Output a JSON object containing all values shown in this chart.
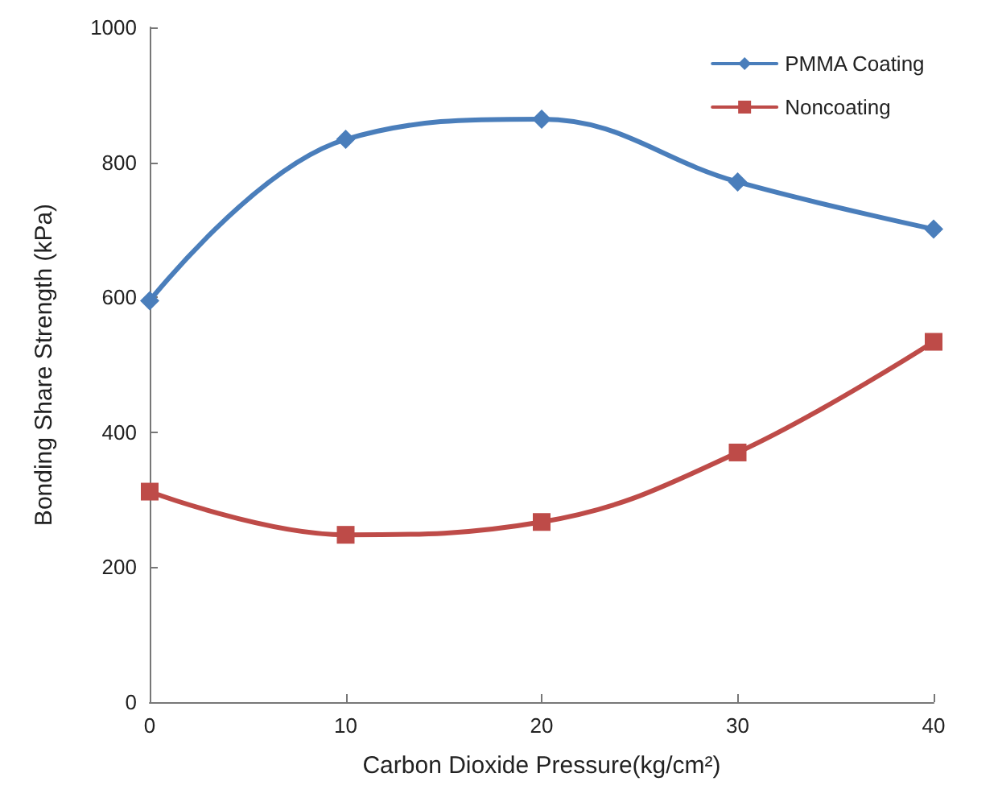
{
  "chart_data": {
    "type": "line",
    "xlabel": "Carbon Dioxide Pressure(kg/cm²)",
    "ylabel": "Bonding Share Strength (kPa)",
    "x": [
      0,
      10,
      20,
      30,
      40
    ],
    "series": [
      {
        "name": "PMMA Coating",
        "color": "#4a7ebb",
        "marker": "diamond",
        "values": [
          595,
          834,
          864,
          771,
          701
        ]
      },
      {
        "name": "Noncoating",
        "color": "#be4b48",
        "marker": "square",
        "values": [
          312,
          248,
          267,
          370,
          534
        ]
      }
    ],
    "xlim": [
      0,
      40
    ],
    "xticks": [
      0,
      10,
      20,
      30,
      40
    ],
    "ylim": [
      0,
      1000
    ],
    "yticks": [
      0,
      200,
      400,
      600,
      800,
      1000
    ],
    "grid": false,
    "legend": "top right",
    "line_style": "solid"
  }
}
